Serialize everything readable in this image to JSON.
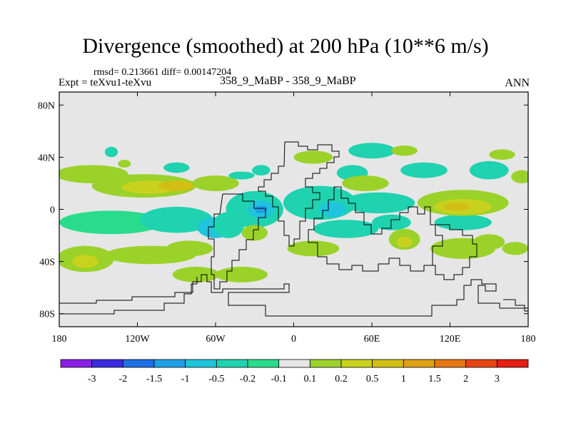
{
  "title": "Divergence (smoothed) at 200 hPa (10**6 m/s)",
  "stats": "rmsd= 0.213661 diff= 0.00147204",
  "expt_label": "Expt = teXvu1-teXvu",
  "center_label": "358_9_MaBP - 358_9_MaBP",
  "season_label": "ANN",
  "map": {
    "lon_range": [
      -180,
      180
    ],
    "lat_range": [
      -90,
      90
    ],
    "background_color": "#e6e6e6",
    "coastline_color": "#000000",
    "y_ticks": [
      {
        "lat": 80,
        "label": "80N"
      },
      {
        "lat": 40,
        "label": "40N"
      },
      {
        "lat": 0,
        "label": "0"
      },
      {
        "lat": -40,
        "label": "40S"
      },
      {
        "lat": -80,
        "label": "80S"
      }
    ],
    "x_ticks": [
      {
        "lon": -180,
        "label": "180"
      },
      {
        "lon": -120,
        "label": "120W"
      },
      {
        "lon": -60,
        "label": "60W"
      },
      {
        "lon": 0,
        "label": "0"
      },
      {
        "lon": 60,
        "label": "60E"
      },
      {
        "lon": 120,
        "label": "120E"
      },
      {
        "lon": 180,
        "label": "180"
      }
    ],
    "regions": [
      {
        "lon": -155,
        "lat": 27,
        "rx": 28,
        "ry": 7,
        "level": 0.2
      },
      {
        "lon": -115,
        "lat": 18,
        "rx": 40,
        "ry": 9,
        "level": 0.2
      },
      {
        "lon": -110,
        "lat": 17,
        "rx": 22,
        "ry": 5,
        "level": 0.5
      },
      {
        "lon": -90,
        "lat": 18,
        "rx": 14,
        "ry": 4,
        "level": 1
      },
      {
        "lon": -60,
        "lat": 20,
        "rx": 18,
        "ry": 6,
        "level": 0.2
      },
      {
        "lon": -140,
        "lat": 44,
        "rx": 5,
        "ry": 4,
        "level": -0.2
      },
      {
        "lon": -130,
        "lat": 35,
        "rx": 5,
        "ry": 3,
        "level": 0.2
      },
      {
        "lon": -90,
        "lat": 32,
        "rx": 10,
        "ry": 4,
        "level": -0.2
      },
      {
        "lon": -40,
        "lat": 26,
        "rx": 10,
        "ry": 3,
        "level": -0.2
      },
      {
        "lon": -25,
        "lat": 30,
        "rx": 7,
        "ry": 4,
        "level": -0.2
      },
      {
        "lon": -140,
        "lat": -10,
        "rx": 40,
        "ry": 9,
        "level": -0.1
      },
      {
        "lon": -90,
        "lat": -8,
        "rx": 28,
        "ry": 10,
        "level": -0.2
      },
      {
        "lon": -30,
        "lat": 0,
        "rx": 22,
        "ry": 14,
        "level": -0.2
      },
      {
        "lon": -25,
        "lat": 0,
        "rx": 10,
        "ry": 7,
        "level": -0.5
      },
      {
        "lon": -25,
        "lat": 0,
        "rx": 5,
        "ry": 3,
        "level": -1
      },
      {
        "lon": -60,
        "lat": -14,
        "rx": 14,
        "ry": 8,
        "level": -0.5
      },
      {
        "lon": -50,
        "lat": -12,
        "rx": 12,
        "ry": 10,
        "level": -0.2
      },
      {
        "lon": 20,
        "lat": 5,
        "rx": 28,
        "ry": 13,
        "level": -0.2
      },
      {
        "lon": 30,
        "lat": 0,
        "rx": 10,
        "ry": 6,
        "level": -0.5
      },
      {
        "lon": 65,
        "lat": 5,
        "rx": 28,
        "ry": 8,
        "level": -0.2
      },
      {
        "lon": 40,
        "lat": -15,
        "rx": 25,
        "ry": 7,
        "level": -0.2
      },
      {
        "lon": 75,
        "lat": -10,
        "rx": 15,
        "ry": 6,
        "level": -0.2
      },
      {
        "lon": 130,
        "lat": -10,
        "rx": 22,
        "ry": 6,
        "level": -0.2
      },
      {
        "lon": 150,
        "lat": 30,
        "rx": 15,
        "ry": 7,
        "level": -0.2
      },
      {
        "lon": 100,
        "lat": 30,
        "rx": 18,
        "ry": 6,
        "level": -0.2
      },
      {
        "lon": 45,
        "lat": 28,
        "rx": 12,
        "ry": 6,
        "level": -0.2
      },
      {
        "lon": 60,
        "lat": 45,
        "rx": 18,
        "ry": 6,
        "level": -0.2
      },
      {
        "lon": -110,
        "lat": -35,
        "rx": 35,
        "ry": 7,
        "level": 0.2
      },
      {
        "lon": -160,
        "lat": -38,
        "rx": 22,
        "ry": 10,
        "level": 0.2
      },
      {
        "lon": -160,
        "lat": -40,
        "rx": 10,
        "ry": 5,
        "level": 0.5
      },
      {
        "lon": -80,
        "lat": -30,
        "rx": 18,
        "ry": 6,
        "level": 0.2
      },
      {
        "lon": -75,
        "lat": -50,
        "rx": 18,
        "ry": 6,
        "level": 0.2
      },
      {
        "lon": -40,
        "lat": -50,
        "rx": 20,
        "ry": 6,
        "level": 0.2
      },
      {
        "lon": -30,
        "lat": -18,
        "rx": 10,
        "ry": 6,
        "level": 0.2
      },
      {
        "lon": 15,
        "lat": -30,
        "rx": 20,
        "ry": 6,
        "level": 0.2
      },
      {
        "lon": 15,
        "lat": 40,
        "rx": 15,
        "ry": 5,
        "level": 0.2
      },
      {
        "lon": 55,
        "lat": 20,
        "rx": 18,
        "ry": 6,
        "level": 0.2
      },
      {
        "lon": 85,
        "lat": 45,
        "rx": 10,
        "ry": 4,
        "level": 0.2
      },
      {
        "lon": 130,
        "lat": 5,
        "rx": 35,
        "ry": 10,
        "level": 0.2
      },
      {
        "lon": 130,
        "lat": 2,
        "rx": 22,
        "ry": 6,
        "level": 0.5
      },
      {
        "lon": 125,
        "lat": 2,
        "rx": 10,
        "ry": 3,
        "level": 1
      },
      {
        "lon": 85,
        "lat": -23,
        "rx": 12,
        "ry": 8,
        "level": 0.2
      },
      {
        "lon": 85,
        "lat": -25,
        "rx": 6,
        "ry": 4,
        "level": 0.5
      },
      {
        "lon": 130,
        "lat": -30,
        "rx": 25,
        "ry": 8,
        "level": 0.2
      },
      {
        "lon": 150,
        "lat": -25,
        "rx": 12,
        "ry": 6,
        "level": 0.2
      },
      {
        "lon": 175,
        "lat": 25,
        "rx": 8,
        "ry": 5,
        "level": 0.2
      },
      {
        "lon": 160,
        "lat": 42,
        "rx": 10,
        "ry": 4,
        "level": 0.2
      },
      {
        "lon": 170,
        "lat": -30,
        "rx": 10,
        "ry": 5,
        "level": 0.2
      }
    ]
  },
  "colorbar": {
    "colors": [
      "#8a20e6",
      "#3a2be0",
      "#1f6fe6",
      "#1fa0e6",
      "#20c4dc",
      "#1fd2b0",
      "#28dc8c",
      "#e6e6e6",
      "#9bd22a",
      "#c8d21e",
      "#d2be14",
      "#dca014",
      "#e67814",
      "#e64614",
      "#e61e14"
    ],
    "labels": [
      "-3",
      "-2",
      "-1.5",
      "-1",
      "-0.5",
      "-0.2",
      "-0.1",
      "0.1",
      "0.2",
      "0.5",
      "1",
      "1.5",
      "2",
      "3"
    ]
  }
}
